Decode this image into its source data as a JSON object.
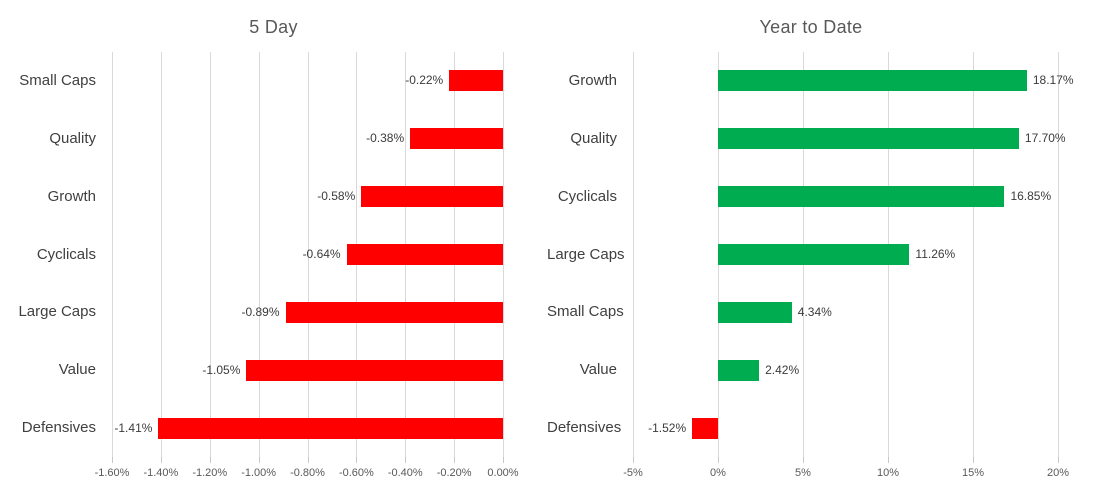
{
  "colors": {
    "positive": "#00AC50",
    "negative": "#FF0000",
    "gridline": "#D9D9D9",
    "title_text": "#595959",
    "axis_text": "#595959",
    "category_text": "#404040",
    "value_text": "#3b3b3b",
    "background": "#FFFFFF"
  },
  "chart_data": [
    {
      "type": "bar",
      "orientation": "horizontal",
      "title": "5 Day",
      "categories": [
        "Small Caps",
        "Quality",
        "Growth",
        "Cyclicals",
        "Large Caps",
        "Value",
        "Defensives"
      ],
      "values": [
        -0.22,
        -0.38,
        -0.58,
        -0.64,
        -0.89,
        -1.05,
        -1.41
      ],
      "value_labels": [
        "-0.22%",
        "-0.38%",
        "-0.58%",
        "-0.64%",
        "-0.89%",
        "-1.05%",
        "-1.41%"
      ],
      "xlim": [
        -1.6,
        0
      ],
      "x_ticks": [
        -1.6,
        -1.4,
        -1.2,
        -1.0,
        -0.8,
        -0.6,
        -0.4,
        -0.2,
        0
      ],
      "x_tick_labels": [
        "-1.60%",
        "-1.40%",
        "-1.20%",
        "-1.00%",
        "-0.80%",
        "-0.60%",
        "-0.40%",
        "-0.20%",
        "0.00%"
      ],
      "grid": true,
      "legend": "none"
    },
    {
      "type": "bar",
      "orientation": "horizontal",
      "title": "Year to Date",
      "categories": [
        "Growth",
        "Quality",
        "Cyclicals",
        "Large Caps",
        "Small Caps",
        "Value",
        "Defensives"
      ],
      "values": [
        18.17,
        17.7,
        16.85,
        11.26,
        4.34,
        2.42,
        -1.52
      ],
      "value_labels": [
        "18.17%",
        "17.70%",
        "16.85%",
        "11.26%",
        "4.34%",
        "2.42%",
        "-1.52%"
      ],
      "xlim": [
        -5,
        20
      ],
      "x_ticks": [
        -5,
        0,
        5,
        10,
        15,
        20
      ],
      "x_tick_labels": [
        "-5%",
        "0%",
        "5%",
        "10%",
        "15%",
        "20%"
      ],
      "grid": true,
      "legend": "none"
    }
  ]
}
